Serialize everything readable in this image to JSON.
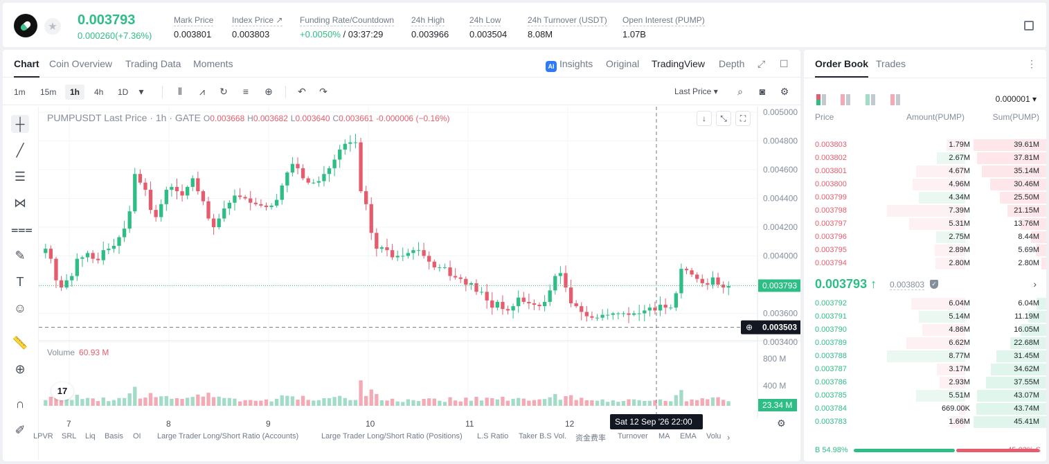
{
  "header": {
    "last_price": "0.003793",
    "change": "0.000260(+7.36%)",
    "stats": [
      {
        "label": "Mark Price",
        "value": "0.003801"
      },
      {
        "label": "Index Price ↗",
        "value": "0.003803"
      },
      {
        "label": "Funding Rate/Countdown",
        "value_rate": "+0.0050%",
        "value_cd": " / 03:37:29"
      },
      {
        "label": "24h High",
        "value": "0.003966"
      },
      {
        "label": "24h Low",
        "value": "0.003504"
      },
      {
        "label": "24h Turnover (USDT)",
        "value": "8.08M"
      },
      {
        "label": "Open Interest (PUMP)",
        "value": "1.07B"
      }
    ]
  },
  "chart_tabs": {
    "chart": "Chart",
    "coin_overview": "Coin Overview",
    "trading_data": "Trading Data",
    "moments": "Moments"
  },
  "view_modes": {
    "ai": "AI",
    "insights": "Insights",
    "original": "Original",
    "tradingview": "TradingView",
    "depth": "Depth"
  },
  "timeframes": [
    "1m",
    "15m",
    "1h",
    "4h",
    "1D"
  ],
  "price_type": "Last Price",
  "legend": {
    "symbol": "PUMPUSDT Last Price · 1h · GATE",
    "o_key": "O",
    "o": "0.003668",
    "h_key": "H",
    "h": "0.003682",
    "l_key": "L",
    "l": "0.003640",
    "c_key": "C",
    "c": "0.003661",
    "chg": "-0.000006 (−0.16%)"
  },
  "volume_legend": {
    "label": "Volume",
    "value": "60.93 M"
  },
  "indicators": [
    "LPVR",
    "SRL",
    "Liq",
    "Basis",
    "OI",
    "Large Trader Long/Short Ratio (Accounts)",
    "Large Trader Long/Short Ratio (Positions)",
    "L.S Ratio",
    "Taker B.S Vol.",
    "资金费率",
    "Turnover",
    "MA",
    "EMA",
    "Volu"
  ],
  "crosshair_label": "Sat 12 Sep '26   22:00",
  "tv_logo": "17",
  "chart_data": {
    "type": "candlestick",
    "title": "PUMPUSDT Last Price · 1h · GATE",
    "y_axis_ticks": [
      "0.005000",
      "0.004800",
      "0.004600",
      "0.004400",
      "0.004200",
      "0.004000",
      "0.003600",
      "0.003400"
    ],
    "ylim": [
      0.0034,
      0.005
    ],
    "x_axis_ticks": [
      "7",
      "8",
      "9",
      "10",
      "11",
      "12"
    ],
    "volume_ticks": [
      "800 M",
      "400 M"
    ],
    "last_price_label": "0.003793",
    "crosshair_price": "0.003503",
    "current_volume": "23.34 M",
    "colors": {
      "up": "#2ebd85",
      "down": "#e55c6d",
      "vol_up": "#a3dcc6",
      "vol_down": "#f3aab4"
    },
    "closes": [
      0.00405,
      0.00398,
      0.00383,
      0.00378,
      0.00383,
      0.00386,
      0.00398,
      0.00399,
      0.00402,
      0.00398,
      0.00397,
      0.00404,
      0.00405,
      0.00407,
      0.00413,
      0.00419,
      0.00431,
      0.00457,
      0.00451,
      0.00446,
      0.00432,
      0.00427,
      0.00436,
      0.00446,
      0.00448,
      0.00445,
      0.00442,
      0.00448,
      0.00454,
      0.00445,
      0.00438,
      0.00426,
      0.0042,
      0.00426,
      0.00433,
      0.00437,
      0.00442,
      0.00441,
      0.0044,
      0.00437,
      0.00436,
      0.00435,
      0.00434,
      0.00435,
      0.00439,
      0.00449,
      0.00458,
      0.00464,
      0.00461,
      0.00454,
      0.00451,
      0.00451,
      0.00452,
      0.00457,
      0.00461,
      0.00467,
      0.00474,
      0.00478,
      0.00479,
      0.00479,
      0.00445,
      0.00436,
      0.00416,
      0.00405,
      0.00406,
      0.00404,
      0.00399,
      0.004,
      0.004,
      0.00402,
      0.00404,
      0.00404,
      0.004,
      0.00396,
      0.00392,
      0.00392,
      0.00392,
      0.00386,
      0.00385,
      0.00384,
      0.0038,
      0.00381,
      0.00375,
      0.00375,
      0.00369,
      0.00364,
      0.00368,
      0.00363,
      0.00362,
      0.00365,
      0.00371,
      0.00368,
      0.00367,
      0.00366,
      0.00365,
      0.00368,
      0.00376,
      0.00386,
      0.00388,
      0.00378,
      0.00367,
      0.00365,
      0.00361,
      0.00358,
      0.00357,
      0.00357,
      0.00359,
      0.00359,
      0.0036,
      0.0036,
      0.0036,
      0.00359,
      0.0036,
      0.0036,
      0.00362,
      0.00364,
      0.00362,
      0.00366,
      0.00364,
      0.00364,
      0.00374,
      0.00391,
      0.0039,
      0.00387,
      0.00384,
      0.00381,
      0.0038,
      0.00385,
      0.0038,
      0.00378,
      0.00379
    ]
  },
  "orderbook": {
    "tabs": {
      "order_book": "Order Book",
      "trades": "Trades"
    },
    "precision": "0.000001",
    "headers": {
      "price": "Price",
      "amount": "Amount(PUMP)",
      "sum": "Sum(PUMP)"
    },
    "asks": [
      {
        "price": "0.003803",
        "amount": "1.79M",
        "sum": "39.61M",
        "sum_pct": 100,
        "amt_pct": 24
      },
      {
        "price": "0.003802",
        "amount": "2.67M",
        "sum": "37.81M",
        "sum_pct": 95,
        "amt_pct": 36
      },
      {
        "price": "0.003801",
        "amount": "4.67M",
        "sum": "35.14M",
        "sum_pct": 89,
        "amt_pct": 63
      },
      {
        "price": "0.003800",
        "amount": "4.96M",
        "sum": "30.46M",
        "sum_pct": 77,
        "amt_pct": 67
      },
      {
        "price": "0.003799",
        "amount": "4.34M",
        "sum": "25.50M",
        "sum_pct": 64,
        "amt_pct": 59
      },
      {
        "price": "0.003798",
        "amount": "7.39M",
        "sum": "21.15M",
        "sum_pct": 53,
        "amt_pct": 100
      },
      {
        "price": "0.003797",
        "amount": "5.31M",
        "sum": "13.76M",
        "sum_pct": 35,
        "amt_pct": 72
      },
      {
        "price": "0.003796",
        "amount": "2.75M",
        "sum": "8.44M",
        "sum_pct": 21,
        "amt_pct": 37
      },
      {
        "price": "0.003795",
        "amount": "2.89M",
        "sum": "5.69M",
        "sum_pct": 14,
        "amt_pct": 39
      },
      {
        "price": "0.003794",
        "amount": "2.80M",
        "sum": "2.80M",
        "sum_pct": 7,
        "amt_pct": 38
      }
    ],
    "mid_price": "0.003793 ↑",
    "mid_ref": "0.003803",
    "mid_arrow": "›",
    "bids": [
      {
        "price": "0.003792",
        "amount": "6.04M",
        "sum": "6.04M",
        "sum_pct": 13,
        "amt_pct": 69
      },
      {
        "price": "0.003791",
        "amount": "5.14M",
        "sum": "11.19M",
        "sum_pct": 25,
        "amt_pct": 59
      },
      {
        "price": "0.003790",
        "amount": "4.86M",
        "sum": "16.05M",
        "sum_pct": 35,
        "amt_pct": 55
      },
      {
        "price": "0.003789",
        "amount": "6.62M",
        "sum": "22.68M",
        "sum_pct": 50,
        "amt_pct": 75
      },
      {
        "price": "0.003788",
        "amount": "8.77M",
        "sum": "31.45M",
        "sum_pct": 69,
        "amt_pct": 100
      },
      {
        "price": "0.003787",
        "amount": "3.17M",
        "sum": "34.62M",
        "sum_pct": 76,
        "amt_pct": 36
      },
      {
        "price": "0.003786",
        "amount": "2.93M",
        "sum": "37.55M",
        "sum_pct": 83,
        "amt_pct": 33
      },
      {
        "price": "0.003785",
        "amount": "5.51M",
        "sum": "43.07M",
        "sum_pct": 95,
        "amt_pct": 63
      },
      {
        "price": "0.003784",
        "amount": "669.00K",
        "sum": "43.74M",
        "sum_pct": 96,
        "amt_pct": 8
      },
      {
        "price": "0.003783",
        "amount": "1.66M",
        "sum": "45.41M",
        "sum_pct": 100,
        "amt_pct": 19
      }
    ],
    "buy_label": "B 54.98%",
    "sell_label": "45.02% S",
    "buy_pct": 54.98
  }
}
